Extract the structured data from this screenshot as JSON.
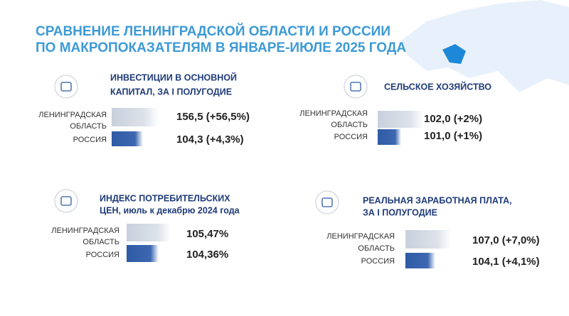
{
  "header": {
    "title": [
      "СРАВНЕНИЕ ЛЕНИНГРАДСКОЙ ОБЛАСТИ И РОССИИ",
      "ПО МАКРОПОКАЗАТЕЛЯМ В ЯНВАРЕ-ИЮЛЕ 2025 ГОДА"
    ]
  },
  "panels": [
    {
      "title": [
        "ИНВЕСТИЦИИ  В ОСНОВНОЙ",
        "КАПИТАЛ, ЗА I ПОЛУГОДИЕ"
      ],
      "rows": [
        {
          "label": [
            "ЛЕНИНГРАДСКАЯ",
            "ОБЛАСТЬ"
          ],
          "value": "156,5 (+56,5%)"
        },
        {
          "label": [
            "РОССИЯ"
          ],
          "value": "104,3 (+4,3%)"
        }
      ]
    },
    {
      "title": [
        "СЕЛЬСКОЕ ХОЗЯЙСТВО"
      ],
      "rows": [
        {
          "label": [
            "ЛЕНИНГРАДСКАЯ",
            "ОБЛАСТЬ"
          ],
          "value": "102,0 (+2%)"
        },
        {
          "label": [
            "РОССИЯ"
          ],
          "value": "101,0 (+1%)"
        }
      ]
    },
    {
      "title": [
        "ИНДЕКС ПОТРЕБИТЕЛЬСКИХ",
        "ЦЕН, июль к декабрю 2024 года"
      ],
      "rows": [
        {
          "label": [
            "ЛЕНИНГРАДСКАЯ",
            "ОБЛАСТЬ"
          ],
          "value": "105,47%"
        },
        {
          "label": [
            "РОССИЯ"
          ],
          "value": "104,36%"
        }
      ]
    },
    {
      "title": [
        "РЕАЛЬНАЯ ЗАРАБОТНАЯ ПЛАТА,",
        "ЗА I ПОЛУГОДИЕ"
      ],
      "rows": [
        {
          "label": [
            "ЛЕНИНГРАДСКАЯ",
            "ОБЛАСТЬ"
          ],
          "value": "107,0 (+7,0%)"
        },
        {
          "label": [
            "РОССИЯ"
          ],
          "value": "104,1 (+4,1%)"
        }
      ]
    }
  ]
}
